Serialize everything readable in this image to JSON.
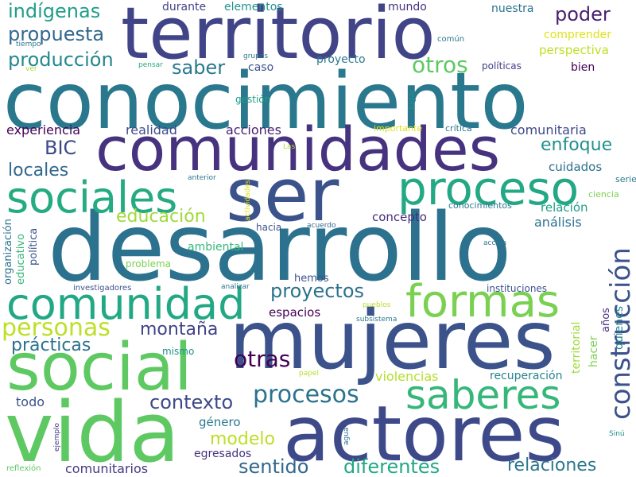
{
  "words": [
    {
      "text": "conocimiento",
      "color": "#2a788e"
    },
    {
      "text": "desarrollo",
      "color": "#2c728e"
    },
    {
      "text": "mujeres",
      "color": "#3b528b"
    },
    {
      "text": "territorio",
      "color": "#414487"
    },
    {
      "text": "comunidades",
      "color": "#46327e"
    },
    {
      "text": "actores",
      "color": "#3e4989"
    },
    {
      "text": "vida",
      "color": "#5ec962"
    },
    {
      "text": "ser",
      "color": "#3b528b"
    },
    {
      "text": "social",
      "color": "#5ec962"
    },
    {
      "text": "comunidad",
      "color": "#22a884"
    },
    {
      "text": "sociales",
      "color": "#25ab82"
    },
    {
      "text": "proceso",
      "color": "#22a884"
    },
    {
      "text": "formas",
      "color": "#7ad151"
    },
    {
      "text": "saberes",
      "color": "#35b779"
    },
    {
      "text": "construcción",
      "color": "#3b528b"
    },
    {
      "text": "personas",
      "color": "#bddf26"
    },
    {
      "text": "procesos",
      "color": "#2c728e"
    },
    {
      "text": "indígenas",
      "color": "#1f9e89"
    },
    {
      "text": "propuesta",
      "color": "#31688e"
    },
    {
      "text": "producción",
      "color": "#23888e"
    },
    {
      "text": "saber",
      "color": "#2a788e"
    },
    {
      "text": "otros",
      "color": "#5ec962"
    },
    {
      "text": "poder",
      "color": "#481f70"
    },
    {
      "text": "enfoque",
      "color": "#21918c"
    },
    {
      "text": "proyectos",
      "color": "#2c728e"
    },
    {
      "text": "educación",
      "color": "#9fda3a"
    },
    {
      "text": "locales",
      "color": "#31688e"
    },
    {
      "text": "BIC",
      "color": "#3e4989"
    },
    {
      "text": "prácticas",
      "color": "#2c728e"
    },
    {
      "text": "montaña",
      "color": "#414487"
    },
    {
      "text": "contexto",
      "color": "#3e4989"
    },
    {
      "text": "otras",
      "color": "#440154"
    },
    {
      "text": "modelo",
      "color": "#bddf26"
    },
    {
      "text": "sentido",
      "color": "#31688e"
    },
    {
      "text": "diferentes",
      "color": "#22a884"
    },
    {
      "text": "relaciones",
      "color": "#2a788e"
    },
    {
      "text": "comunitarios",
      "color": "#443983"
    },
    {
      "text": "egresados",
      "color": "#46327e"
    },
    {
      "text": "género",
      "color": "#2a788e"
    },
    {
      "text": "todo",
      "color": "#3b528b"
    },
    {
      "text": "violencias",
      "color": "#b5de2b"
    },
    {
      "text": "recuperación",
      "color": "#26828e"
    },
    {
      "text": "experiencia",
      "color": "#440154"
    },
    {
      "text": "realidad",
      "color": "#3e4989"
    },
    {
      "text": "acciones",
      "color": "#481f70"
    },
    {
      "text": "comunitaria",
      "color": "#3e4989"
    },
    {
      "text": "cuidados",
      "color": "#2c728e"
    },
    {
      "text": "concepto",
      "color": "#472d7b"
    },
    {
      "text": "análisis",
      "color": "#2c728e"
    },
    {
      "text": "relación",
      "color": "#1f9e89"
    },
    {
      "text": "ambiental",
      "color": "#35b779"
    },
    {
      "text": "hacia",
      "color": "#3b528b"
    },
    {
      "text": "espacios",
      "color": "#440154"
    },
    {
      "text": "hemos",
      "color": "#3b528b"
    },
    {
      "text": "mismo",
      "color": "#21918c"
    },
    {
      "text": "problema",
      "color": "#7ad151"
    },
    {
      "text": "durante",
      "color": "#414487"
    },
    {
      "text": "elementos",
      "color": "#21918c"
    },
    {
      "text": "mundo",
      "color": "#46327e"
    },
    {
      "text": "nuestra",
      "color": "#2c728e"
    },
    {
      "text": "comprender",
      "color": "#dde318"
    },
    {
      "text": "perspectiva",
      "color": "#bddf26"
    },
    {
      "text": "políticas",
      "color": "#433e85"
    },
    {
      "text": "bien",
      "color": "#440154"
    },
    {
      "text": "caso",
      "color": "#3b528b"
    },
    {
      "text": "proyecto",
      "color": "#2a788e"
    },
    {
      "text": "gestión",
      "color": "#1f9e89"
    },
    {
      "text": "común",
      "color": "#2a788e"
    },
    {
      "text": "tiempo",
      "color": "#2c728e"
    },
    {
      "text": "ver",
      "color": "#9fda3a"
    },
    {
      "text": "pensar",
      "color": "#22a884"
    },
    {
      "text": "grupos",
      "color": "#2a788e"
    },
    {
      "text": "lugar",
      "color": "#21918c"
    },
    {
      "text": "importante",
      "color": "#dde318"
    },
    {
      "text": "crítica",
      "color": "#2a788e"
    },
    {
      "text": "Las",
      "color": "#b5de2b"
    },
    {
      "text": "anterior",
      "color": "#2a788e"
    },
    {
      "text": "serie",
      "color": "#2a788e"
    },
    {
      "text": "ciencia",
      "color": "#7ad151"
    },
    {
      "text": "conocimientos",
      "color": "#2a788e"
    },
    {
      "text": "acuerdo",
      "color": "#31688e"
    },
    {
      "text": "acción",
      "color": "#2a788e"
    },
    {
      "text": "investigadores",
      "color": "#3b528b"
    },
    {
      "text": "analizar",
      "color": "#2c728e"
    },
    {
      "text": "instituciones",
      "color": "#3b528b"
    },
    {
      "text": "pueblos",
      "color": "#b5de2b"
    },
    {
      "text": "subsistema",
      "color": "#2a788e"
    },
    {
      "text": "papel",
      "color": "#b5de2b"
    },
    {
      "text": "ejemplo",
      "color": "#443983"
    },
    {
      "text": "agua",
      "color": "#2c728e"
    },
    {
      "text": "Sinú",
      "color": "#21918c"
    },
    {
      "text": "reflexión",
      "color": "#5ec962"
    },
    {
      "text": "organización",
      "color": "#2c728e"
    },
    {
      "text": "educativo",
      "color": "#35b779"
    },
    {
      "text": "política",
      "color": "#3b528b"
    },
    {
      "text": "actividades",
      "color": "#dde318"
    },
    {
      "text": "territorial",
      "color": "#9fda3a"
    },
    {
      "text": "hacer",
      "color": "#7ad151"
    },
    {
      "text": "años",
      "color": "#472d7b"
    },
    {
      "text": "quienes",
      "color": "#26828e"
    }
  ]
}
